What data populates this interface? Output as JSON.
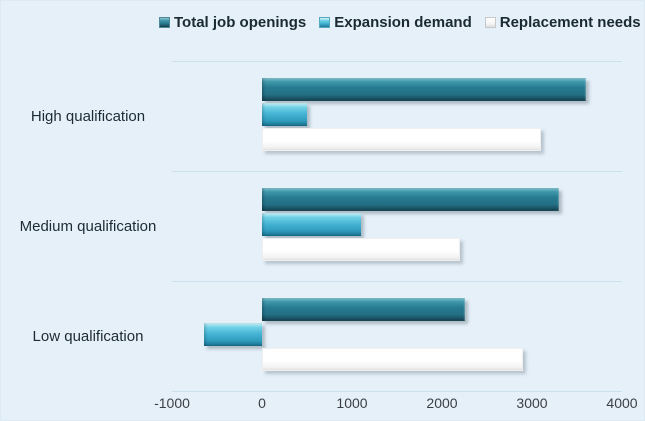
{
  "chart_data": {
    "type": "bar",
    "orientation": "horizontal",
    "title": "",
    "xlabel": "",
    "ylabel": "",
    "categories": [
      "High qualification",
      "Medium qualification",
      "Low qualification"
    ],
    "series": [
      {
        "name": "Total job openings",
        "color": "#26798e",
        "values": [
          3600,
          3300,
          2250
        ]
      },
      {
        "name": "Expansion demand",
        "color": "#41b1d2",
        "values": [
          500,
          1100,
          -650
        ]
      },
      {
        "name": "Replacement needs",
        "color": "#ffffff",
        "values": [
          3100,
          2200,
          2900
        ]
      }
    ],
    "xlim": [
      -1000,
      4000
    ],
    "x_ticks": [
      "-1000",
      "0",
      "1000",
      "2000",
      "3000",
      "4000"
    ],
    "legend_position": "top",
    "grid": "horizontal category separators"
  },
  "colors": {
    "background": "#e6f0f9",
    "gridline": "#c9e1ec",
    "text": "#1c2b35",
    "axis_text": "#3c4045",
    "bar_dark_teal": "#26798e",
    "bar_light_teal": "#41b1d2",
    "bar_white": "#ffffff"
  }
}
